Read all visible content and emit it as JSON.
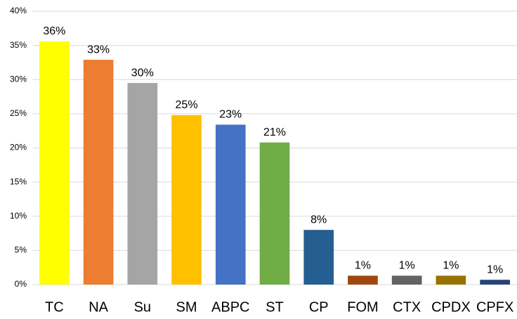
{
  "chart_data": {
    "type": "bar",
    "categories": [
      "TC",
      "NA",
      "Su",
      "SM",
      "ABPC",
      "ST",
      "CP",
      "FOM",
      "CTX",
      "CPDX",
      "CPFX"
    ],
    "values": [
      35.6,
      32.9,
      29.5,
      24.8,
      23.4,
      20.8,
      8.0,
      1.3,
      1.3,
      1.3,
      0.7
    ],
    "value_labels": [
      "36%",
      "33%",
      "30%",
      "25%",
      "23%",
      "21%",
      "8%",
      "1%",
      "1%",
      "1%",
      "1%"
    ],
    "colors": [
      "#ffff00",
      "#ed7d31",
      "#a5a5a5",
      "#ffc000",
      "#4472c4",
      "#70ad47",
      "#255e91",
      "#9e480e",
      "#636363",
      "#997300",
      "#264478"
    ],
    "ylim": [
      0,
      40
    ],
    "yticks": [
      {
        "value": 0,
        "label": "0%"
      },
      {
        "value": 5,
        "label": "5%"
      },
      {
        "value": 10,
        "label": "10%"
      },
      {
        "value": 15,
        "label": "15%"
      },
      {
        "value": 20,
        "label": "20%"
      },
      {
        "value": 25,
        "label": "25%"
      },
      {
        "value": 30,
        "label": "30%"
      },
      {
        "value": 35,
        "label": "35%"
      },
      {
        "value": 40,
        "label": "40%"
      }
    ],
    "grid": true
  }
}
